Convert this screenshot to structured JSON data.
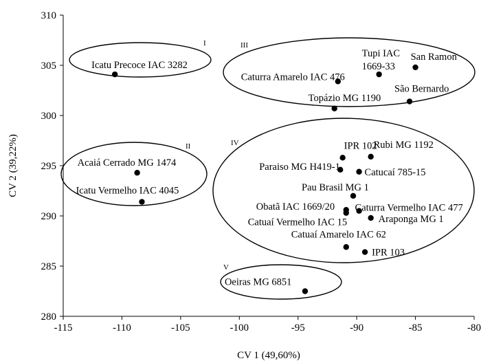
{
  "chart_data": {
    "type": "scatter",
    "xlabel": "CV 1 (49,60%)",
    "ylabel": "CV 2 (39,22%)",
    "xlim": [
      -115,
      -80
    ],
    "ylim": [
      280,
      310
    ],
    "xticks": [
      -115,
      -110,
      -105,
      -100,
      -95,
      -90,
      -85,
      -80
    ],
    "yticks": [
      280,
      285,
      290,
      295,
      300,
      305,
      310
    ],
    "xtick_labels": [
      "-115",
      "-110",
      "-105",
      "-100",
      "-95",
      "-90",
      "-85",
      "-80"
    ],
    "ytick_labels": [
      "280",
      "285",
      "290",
      "295",
      "300",
      "305",
      "310"
    ],
    "grid": false,
    "points": [
      {
        "label": "Icatu Precoce IAC 3282",
        "x": -110.6,
        "y": 304.1
      },
      {
        "label": "Caturra Amarelo IAC 476",
        "x": -91.6,
        "y": 303.4
      },
      {
        "label": "Tupi IAC 1669-33",
        "x": -88.1,
        "y": 304.1
      },
      {
        "label": "San Ramon",
        "x": -85.0,
        "y": 304.8
      },
      {
        "label": "Topázio MG 1190",
        "x": -91.9,
        "y": 300.7
      },
      {
        "label": "São Bernardo",
        "x": -85.5,
        "y": 301.4
      },
      {
        "label": "Acaiá Cerrado MG 1474",
        "x": -108.7,
        "y": 294.3
      },
      {
        "label": "Icatu Vermelho IAC 4045",
        "x": -108.3,
        "y": 291.4
      },
      {
        "label": "IPR 102",
        "x": -91.2,
        "y": 295.8
      },
      {
        "label": "Rubi MG 1192",
        "x": -88.8,
        "y": 295.9
      },
      {
        "label": "Paraiso MG  H419-1",
        "x": -91.4,
        "y": 294.6
      },
      {
        "label": "Catucaí 785-15",
        "x": -89.8,
        "y": 294.4
      },
      {
        "label": "Pau Brasil MG 1",
        "x": -90.3,
        "y": 292.0
      },
      {
        "label": "Obatã IAC 1669/20",
        "x": -90.9,
        "y": 290.6
      },
      {
        "label": "Caturra Vermelho IAC 477",
        "x": -89.8,
        "y": 290.5
      },
      {
        "label": "Catuaí Vermelho IAC 15",
        "x": -90.9,
        "y": 290.3
      },
      {
        "label": "Araponga MG 1",
        "x": -88.8,
        "y": 289.8
      },
      {
        "label": "Catuaí Amarelo IAC 62",
        "x": -90.9,
        "y": 286.9
      },
      {
        "label": "IPR 103",
        "x": -89.3,
        "y": 286.4
      },
      {
        "label": "Oeiras MG 6851",
        "x": -94.4,
        "y": 282.5
      }
    ],
    "groups": [
      {
        "name": "I",
        "members": [
          "Icatu Precoce IAC 3282"
        ]
      },
      {
        "name": "II",
        "members": [
          "Acaiá Cerrado MG 1474",
          "Icatu Vermelho IAC 4045"
        ]
      },
      {
        "name": "III",
        "members": [
          "Caturra Amarelo IAC 476",
          "Tupi IAC 1669-33",
          "San Ramon",
          "Topázio MG 1190",
          "São Bernardo"
        ]
      },
      {
        "name": "IV",
        "members": [
          "IPR 102",
          "Rubi MG 1192",
          "Paraiso MG  H419-1",
          "Catucaí 785-15",
          "Pau Brasil MG 1",
          "Obatã IAC 1669/20",
          "Caturra Vermelho IAC 477",
          "Catuaí Vermelho IAC 15",
          "Araponga MG 1",
          "Catuaí Amarelo IAC 62",
          "IPR 103"
        ]
      },
      {
        "name": "V",
        "members": [
          "Oeiras MG 6851"
        ]
      }
    ]
  }
}
